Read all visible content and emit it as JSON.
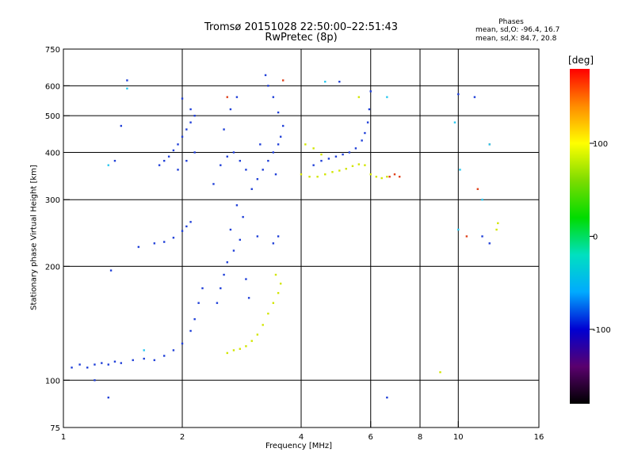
{
  "chart_data": {
    "type": "scatter",
    "title": [
      "Tromsø 20151028 22:50:00–22:51:43",
      "RwPretec (8p)"
    ],
    "stats": {
      "heading": "Phases",
      "o_line": "mean, sd,O: -96.4, 16.7",
      "x_line": "mean, sd,X:  84.7, 20.8"
    },
    "xlabel": "Frequency [MHz]",
    "ylabel": "Stationary phase Virtual Height [km]",
    "x_scale": "log",
    "y_scale": "log",
    "xlim": [
      1,
      16
    ],
    "ylim": [
      75,
      750
    ],
    "x_ticks": [
      1,
      2,
      4,
      6,
      8,
      10,
      16
    ],
    "x_tick_labels": [
      "1",
      "2",
      "4",
      "6",
      "8",
      "10",
      "16"
    ],
    "y_ticks": [
      75,
      100,
      200,
      300,
      400,
      500,
      600,
      750
    ],
    "y_tick_labels": [
      "75",
      "100",
      "200",
      "300",
      "400",
      "500",
      "600",
      "750"
    ],
    "grid_x": [
      2,
      4,
      6,
      8,
      10
    ],
    "grid_y": [
      100,
      200,
      300,
      400,
      500,
      600
    ],
    "grid": true,
    "colorbar": {
      "label": "deg",
      "range": [
        -180,
        180
      ],
      "ticks": [
        100,
        0,
        -100
      ],
      "tick_labels": [
        "100",
        "0",
        "-100"
      ],
      "colors": [
        "#000000",
        "#5a006e",
        "#0000d2",
        "#00aaff",
        "#00e0c0",
        "#00dc00",
        "#7ddc00",
        "#ffff00",
        "#ff8c00",
        "#ff0000"
      ]
    },
    "series": [
      {
        "marker_color": "#1f3fd8",
        "points": [
          [
            1.05,
            108
          ],
          [
            1.1,
            110
          ],
          [
            1.15,
            108
          ],
          [
            1.2,
            110
          ],
          [
            1.25,
            111
          ],
          [
            1.3,
            110
          ],
          [
            1.35,
            112
          ],
          [
            1.4,
            111
          ],
          [
            1.5,
            113
          ],
          [
            1.6,
            114
          ],
          [
            1.7,
            113
          ],
          [
            1.8,
            116
          ],
          [
            1.9,
            120
          ],
          [
            2.0,
            125
          ],
          [
            2.1,
            135
          ],
          [
            2.15,
            145
          ],
          [
            2.2,
            160
          ],
          [
            2.25,
            175
          ],
          [
            1.32,
            195
          ],
          [
            1.55,
            225
          ],
          [
            1.7,
            230
          ],
          [
            1.8,
            232
          ],
          [
            1.9,
            238
          ],
          [
            2.0,
            248
          ],
          [
            2.05,
            255
          ],
          [
            2.1,
            262
          ],
          [
            1.75,
            370
          ],
          [
            1.8,
            380
          ],
          [
            1.85,
            390
          ],
          [
            1.9,
            405
          ],
          [
            1.95,
            420
          ],
          [
            2.0,
            440
          ],
          [
            2.05,
            460
          ],
          [
            2.1,
            480
          ],
          [
            2.15,
            500
          ],
          [
            2.0,
            555
          ],
          [
            2.1,
            520
          ],
          [
            1.95,
            360
          ],
          [
            2.05,
            380
          ],
          [
            2.15,
            400
          ],
          [
            1.35,
            380
          ],
          [
            1.4,
            470
          ],
          [
            1.45,
            620
          ],
          [
            2.4,
            330
          ],
          [
            2.5,
            370
          ],
          [
            2.6,
            390
          ],
          [
            2.7,
            400
          ],
          [
            2.8,
            380
          ],
          [
            2.9,
            360
          ],
          [
            2.55,
            460
          ],
          [
            2.65,
            520
          ],
          [
            2.75,
            560
          ],
          [
            2.45,
            160
          ],
          [
            2.5,
            175
          ],
          [
            2.55,
            190
          ],
          [
            2.6,
            205
          ],
          [
            2.7,
            220
          ],
          [
            2.8,
            235
          ],
          [
            2.65,
            250
          ],
          [
            2.85,
            270
          ],
          [
            2.75,
            290
          ],
          [
            2.9,
            185
          ],
          [
            2.95,
            165
          ],
          [
            3.0,
            320
          ],
          [
            3.1,
            340
          ],
          [
            3.2,
            360
          ],
          [
            3.3,
            380
          ],
          [
            3.4,
            400
          ],
          [
            3.5,
            420
          ],
          [
            3.55,
            440
          ],
          [
            3.6,
            470
          ],
          [
            3.5,
            510
          ],
          [
            3.4,
            560
          ],
          [
            3.3,
            600
          ],
          [
            3.25,
            640
          ],
          [
            3.15,
            420
          ],
          [
            3.45,
            350
          ],
          [
            3.1,
            240
          ],
          [
            3.4,
            230
          ],
          [
            3.5,
            240
          ],
          [
            4.3,
            370
          ],
          [
            4.5,
            380
          ],
          [
            4.7,
            385
          ],
          [
            4.9,
            390
          ],
          [
            5.1,
            395
          ],
          [
            5.3,
            400
          ],
          [
            5.5,
            410
          ],
          [
            5.7,
            430
          ],
          [
            5.8,
            450
          ],
          [
            5.9,
            480
          ],
          [
            5.95,
            520
          ],
          [
            6.0,
            580
          ],
          [
            5.0,
            615
          ],
          [
            6.6,
            90
          ],
          [
            1.3,
            90
          ],
          [
            1.2,
            100
          ],
          [
            10.0,
            570
          ],
          [
            11.0,
            560
          ],
          [
            11.5,
            240
          ],
          [
            12.0,
            230
          ]
        ]
      },
      {
        "marker_color": "#d2e600",
        "points": [
          [
            2.6,
            118
          ],
          [
            2.7,
            120
          ],
          [
            2.8,
            121
          ],
          [
            2.9,
            123
          ],
          [
            3.0,
            127
          ],
          [
            3.1,
            132
          ],
          [
            3.2,
            140
          ],
          [
            3.3,
            150
          ],
          [
            3.4,
            160
          ],
          [
            3.5,
            170
          ],
          [
            3.55,
            180
          ],
          [
            3.45,
            190
          ],
          [
            4.0,
            350
          ],
          [
            4.2,
            345
          ],
          [
            4.4,
            345
          ],
          [
            4.6,
            350
          ],
          [
            4.8,
            355
          ],
          [
            5.0,
            358
          ],
          [
            5.2,
            362
          ],
          [
            5.4,
            368
          ],
          [
            5.6,
            372
          ],
          [
            5.8,
            370
          ],
          [
            6.0,
            350
          ],
          [
            6.2,
            345
          ],
          [
            6.4,
            342
          ],
          [
            6.6,
            345
          ],
          [
            4.1,
            420
          ],
          [
            4.3,
            410
          ],
          [
            4.5,
            395
          ],
          [
            5.6,
            560
          ],
          [
            9.0,
            105
          ],
          [
            12.5,
            250
          ],
          [
            12.6,
            260
          ]
        ]
      },
      {
        "marker_color": "#e0401a",
        "points": [
          [
            6.7,
            345
          ],
          [
            6.9,
            350
          ],
          [
            7.1,
            345
          ],
          [
            10.5,
            240
          ],
          [
            12.0,
            420
          ],
          [
            11.2,
            320
          ],
          [
            2.6,
            560
          ],
          [
            3.6,
            620
          ]
        ]
      },
      {
        "marker_color": "#28c8f0",
        "points": [
          [
            1.6,
            120
          ],
          [
            1.3,
            370
          ],
          [
            1.45,
            590
          ],
          [
            10.0,
            250
          ],
          [
            11.5,
            300
          ],
          [
            12.0,
            420
          ],
          [
            4.6,
            615
          ],
          [
            6.6,
            560
          ],
          [
            9.8,
            480
          ],
          [
            10.1,
            360
          ]
        ]
      }
    ]
  }
}
